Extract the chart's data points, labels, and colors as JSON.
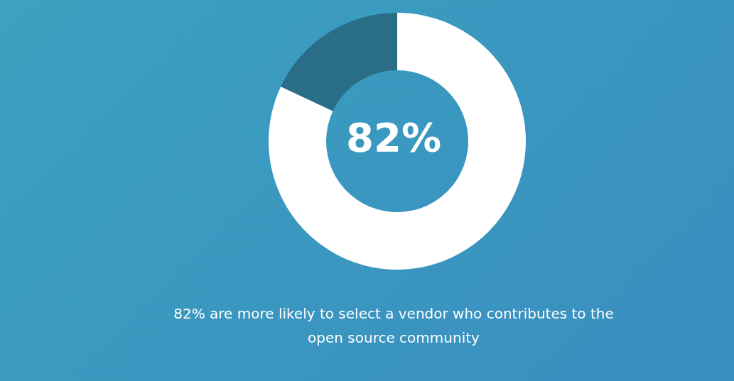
{
  "chart_data": {
    "type": "donut",
    "categories": [
      null,
      null
    ],
    "values": [
      82,
      18
    ],
    "colors": [
      "#ffffff",
      "#296d86"
    ],
    "annotations": [
      "82%",
      "82% are more likely to select a vendor who contributes to the open source community"
    ]
  }
}
